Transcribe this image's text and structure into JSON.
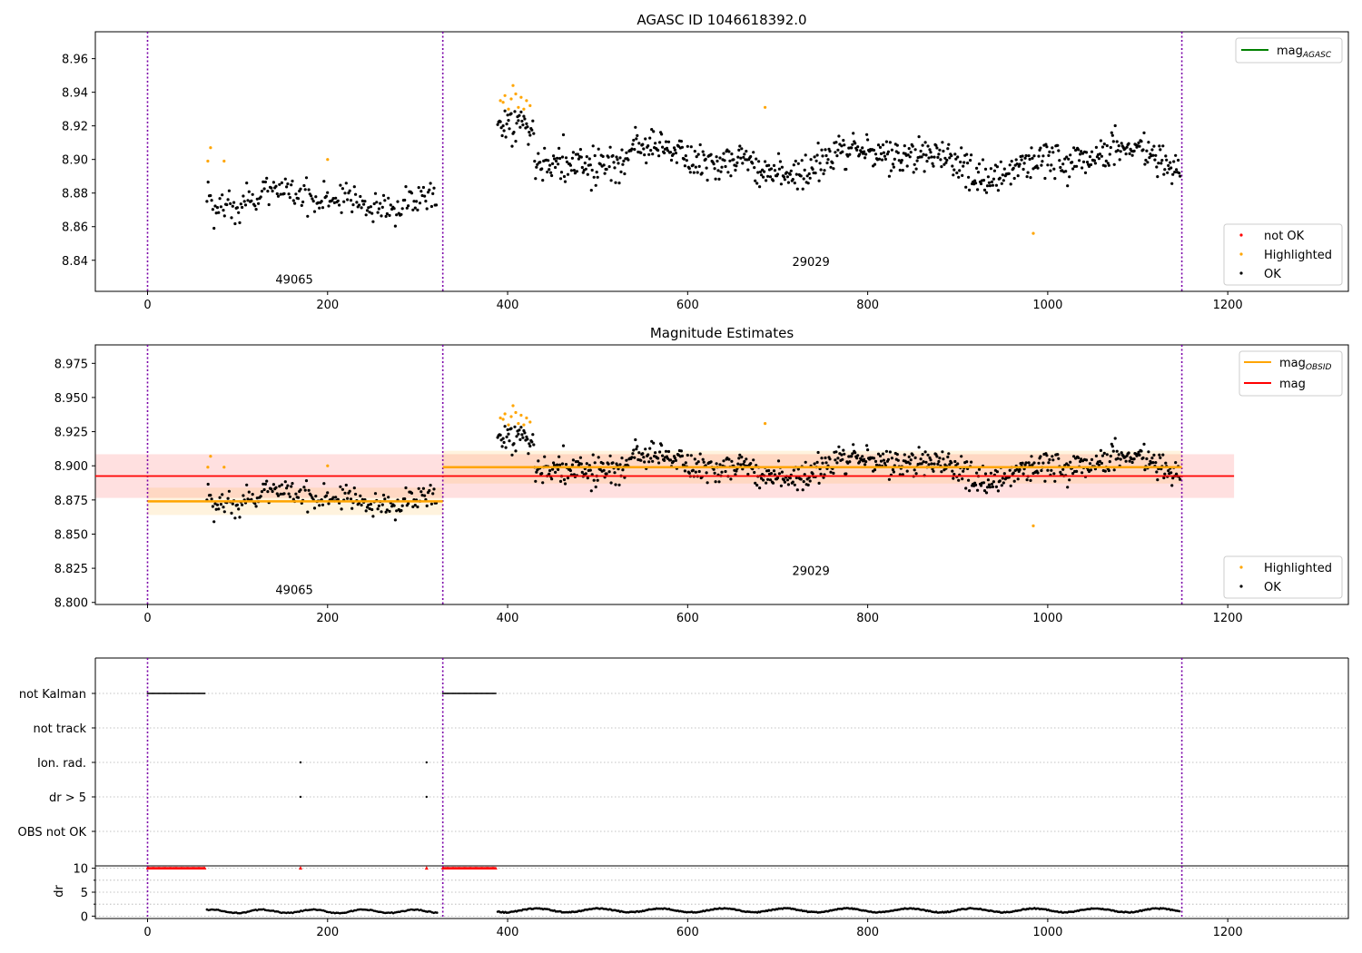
{
  "chart_data": [
    {
      "type": "scatter",
      "title": "AGASC ID 1046618392.0",
      "xlabel": "",
      "ylabel": "",
      "xlim": [
        -58,
        1334
      ],
      "ylim": [
        8.8215,
        8.976
      ],
      "xticks": [
        0,
        200,
        400,
        600,
        800,
        1000,
        1200
      ],
      "yticks": [
        8.84,
        8.86,
        8.88,
        8.9,
        8.92,
        8.94,
        8.96
      ],
      "ytick_labels": [
        "8.84",
        "8.86",
        "8.88",
        "8.90",
        "8.92",
        "8.94",
        "8.96"
      ],
      "grid": false,
      "vlines": [
        0,
        328,
        1149
      ],
      "obsid_labels": [
        {
          "text": "49065",
          "x": 163,
          "y": 8.8262
        },
        {
          "text": "29029",
          "x": 737,
          "y": 8.8365
        }
      ],
      "legends": [
        {
          "placement": "top-right",
          "entries": [
            {
              "label": "mag",
              "sub": "AGASC",
              "kind": "line",
              "color": "#008000"
            }
          ]
        },
        {
          "placement": "bottom-right",
          "entries": [
            {
              "label": "not OK",
              "kind": "dot",
              "color": "#ff0000"
            },
            {
              "label": "Highlighted",
              "kind": "dot",
              "color": "#ffa500"
            },
            {
              "label": "OK",
              "kind": "dot",
              "color": "#000000"
            }
          ]
        }
      ],
      "series": [
        {
          "name": "OK",
          "color": "#000000",
          "generated": "main"
        },
        {
          "name": "Highlighted",
          "color": "#ffa500",
          "points": [
            [
              67,
              8.899
            ],
            [
              70,
              8.907
            ],
            [
              85,
              8.899
            ],
            [
              200,
              8.9
            ],
            [
              392,
              8.935
            ],
            [
              395,
              8.934
            ],
            [
              397,
              8.938
            ],
            [
              401,
              8.93
            ],
            [
              404,
              8.936
            ],
            [
              406,
              8.944
            ],
            [
              409,
              8.939
            ],
            [
              412,
              8.931
            ],
            [
              415,
              8.937
            ],
            [
              418,
              8.93
            ],
            [
              421,
              8.935
            ],
            [
              425,
              8.932
            ],
            [
              686,
              8.931
            ],
            [
              984,
              8.856
            ]
          ]
        }
      ]
    },
    {
      "type": "scatter",
      "title": "Magnitude Estimates",
      "xlabel": "",
      "ylabel": "",
      "xlim": [
        -58,
        1334
      ],
      "ylim": [
        8.7985,
        8.9885
      ],
      "xticks": [
        0,
        200,
        400,
        600,
        800,
        1000,
        1200
      ],
      "yticks": [
        8.8,
        8.825,
        8.85,
        8.875,
        8.9,
        8.925,
        8.95,
        8.975
      ],
      "ytick_labels": [
        "8.800",
        "8.825",
        "8.850",
        "8.875",
        "8.900",
        "8.925",
        "8.950",
        "8.975"
      ],
      "grid": false,
      "vlines": [
        0,
        328,
        1149
      ],
      "obsid_labels": [
        {
          "text": "49065",
          "x": 163,
          "y": 8.806
        },
        {
          "text": "29029",
          "x": 737,
          "y": 8.82
        }
      ],
      "mag_line": {
        "value": 8.8925,
        "band": [
          8.8765,
          8.9085
        ],
        "x": [
          -58,
          1207
        ],
        "color": "#ff0000"
      },
      "obsid_segments": [
        {
          "x": [
            0,
            328
          ],
          "value": 8.874,
          "band": [
            8.864,
            8.884
          ],
          "color": "#ffa500"
        },
        {
          "x": [
            328,
            1149
          ],
          "value": 8.899,
          "band": [
            8.887,
            8.911
          ],
          "color": "#ffa500"
        }
      ],
      "legends": [
        {
          "placement": "top-right",
          "entries": [
            {
              "label": "mag",
              "sub": "OBSID",
              "kind": "line",
              "color": "#ffa500"
            },
            {
              "label": "mag",
              "sub": "",
              "kind": "line",
              "color": "#ff0000"
            }
          ]
        },
        {
          "placement": "bottom-right",
          "entries": [
            {
              "label": "Highlighted",
              "kind": "dot",
              "color": "#ffa500"
            },
            {
              "label": "OK",
              "kind": "dot",
              "color": "#000000"
            }
          ]
        }
      ],
      "series": [
        {
          "name": "OK",
          "color": "#000000",
          "generated": "main"
        },
        {
          "name": "Highlighted",
          "color": "#ffa500",
          "points": [
            [
              67,
              8.899
            ],
            [
              70,
              8.907
            ],
            [
              85,
              8.899
            ],
            [
              200,
              8.9
            ],
            [
              392,
              8.935
            ],
            [
              395,
              8.934
            ],
            [
              397,
              8.938
            ],
            [
              401,
              8.93
            ],
            [
              404,
              8.936
            ],
            [
              406,
              8.944
            ],
            [
              409,
              8.939
            ],
            [
              412,
              8.931
            ],
            [
              415,
              8.937
            ],
            [
              418,
              8.93
            ],
            [
              421,
              8.935
            ],
            [
              425,
              8.932
            ],
            [
              686,
              8.931
            ],
            [
              984,
              8.856
            ]
          ]
        }
      ]
    },
    {
      "type": "scatter",
      "title": "",
      "xlabel": "",
      "ylabel": "",
      "xlim": [
        -58,
        1334
      ],
      "categories": [
        "not Kalman",
        "not track",
        "Ion. rad.",
        "dr > 5",
        "OBS not OK"
      ],
      "grid": true,
      "vlines": [
        0,
        328,
        1149
      ],
      "flags": [
        {
          "category": "not Kalman",
          "ranges": [
            [
              0,
              64
            ],
            [
              328,
              387
            ]
          ],
          "points": []
        },
        {
          "category": "not track",
          "ranges": [],
          "points": []
        },
        {
          "category": "Ion. rad.",
          "ranges": [],
          "points": [
            170,
            310
          ]
        },
        {
          "category": "dr > 5",
          "ranges": [],
          "points": [
            170,
            310
          ]
        },
        {
          "category": "OBS not OK",
          "ranges": [],
          "points": []
        }
      ]
    },
    {
      "type": "scatter",
      "title": "",
      "xlabel": "",
      "ylabel": "dr",
      "xlim": [
        -58,
        1334
      ],
      "ylim": [
        -0.5,
        10.5
      ],
      "yticks": [
        0,
        5,
        10
      ],
      "ytick_labels": [
        "0",
        "5",
        "10"
      ],
      "grid": true,
      "vlines": [
        0,
        328,
        1149
      ],
      "capped": {
        "value": 10,
        "color": "#ff0000",
        "ranges": [
          [
            0,
            64
          ],
          [
            328,
            387
          ]
        ],
        "points": [
          170,
          310
        ]
      },
      "series": [
        {
          "name": "dr",
          "color": "#000000",
          "generated": "dr"
        }
      ]
    }
  ]
}
